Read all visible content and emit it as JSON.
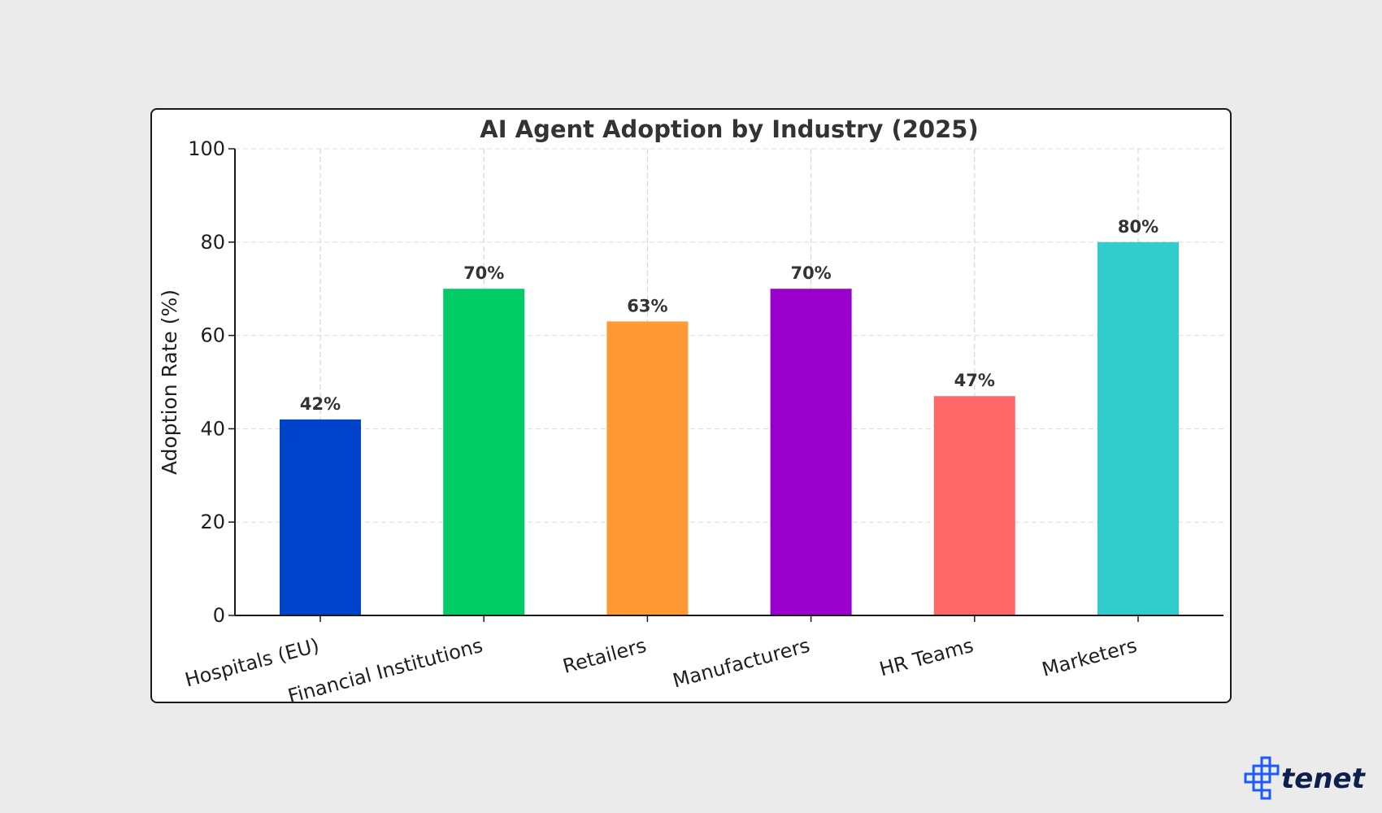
{
  "chart_data": {
    "type": "bar",
    "title": "AI Agent Adoption by Industry (2025)",
    "xlabel": "",
    "ylabel": "Adoption Rate (%)",
    "ylim": [
      0,
      100
    ],
    "yticks": [
      0,
      20,
      40,
      60,
      80,
      100
    ],
    "grid": true,
    "categories": [
      "Hospitals (EU)",
      "Financial Institutions",
      "Retailers",
      "Manufacturers",
      "HR Teams",
      "Marketers"
    ],
    "values": [
      42,
      70,
      63,
      70,
      47,
      80
    ],
    "value_labels": [
      "42%",
      "70%",
      "63%",
      "70%",
      "47%",
      "80%"
    ],
    "colors": [
      "#0044cc",
      "#00cc66",
      "#ff9933",
      "#9900cc",
      "#ff6666",
      "#33cccc"
    ]
  },
  "brand": {
    "name": "tenet",
    "color": "#0d1f4c",
    "accent": "#1e5bff"
  }
}
